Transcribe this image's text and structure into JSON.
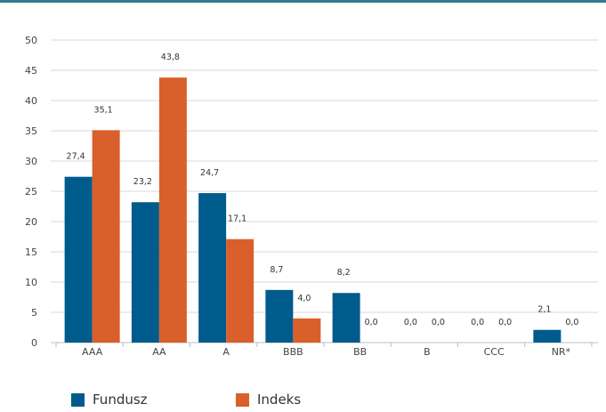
{
  "colors": {
    "top_rule": "#2f7d95",
    "grid": "#d9d9d9",
    "axis": "#bfbfbf"
  },
  "chart_data": {
    "type": "bar",
    "categories": [
      "AAA",
      "AA",
      "A",
      "BBB",
      "BB",
      "B",
      "CCC",
      "NR*"
    ],
    "series": [
      {
        "name": "Fundusz",
        "color": "#005b8d",
        "values": [
          27.4,
          23.2,
          24.7,
          8.7,
          8.2,
          0.0,
          0.0,
          2.1
        ],
        "labels": [
          "27,4",
          "23,2",
          "24,7",
          "8,7",
          "8,2",
          "0,0",
          "0,0",
          "2,1"
        ]
      },
      {
        "name": "Indeks",
        "color": "#d95f2b",
        "values": [
          35.1,
          43.8,
          17.1,
          4.0,
          0.0,
          0.0,
          0.0,
          0.0
        ],
        "labels": [
          "35,1",
          "43,8",
          "17,1",
          "4,0",
          "0,0",
          "0,0",
          "0,0",
          "0,0"
        ]
      }
    ],
    "ylim": [
      0,
      50
    ],
    "yticks": [
      0,
      5,
      10,
      15,
      20,
      25,
      30,
      35,
      40,
      45,
      50
    ],
    "grid": true,
    "legend_position": "bottom-left"
  }
}
